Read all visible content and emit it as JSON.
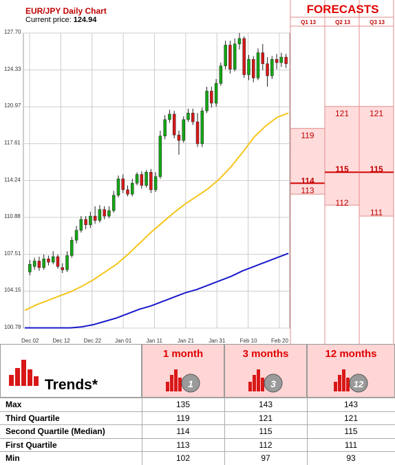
{
  "header": {
    "title": "EUR/JPY Daily Chart",
    "price_label": "Current price:",
    "price_value": "124.94"
  },
  "forecast_panel": {
    "title": "FORECASTS",
    "quarters": [
      "Q1 13",
      "Q2 13",
      "Q3 13"
    ],
    "q1": {
      "high": "119",
      "mid": "114",
      "low": "113"
    },
    "q2": {
      "high": "121",
      "mid": "115",
      "low": "112"
    },
    "q3": {
      "high": "121",
      "mid": "115",
      "low": "111"
    }
  },
  "chart_data": {
    "type": "candlestick",
    "title": "EUR/JPY Daily Chart",
    "yticks": [
      "127.70",
      "124.33",
      "120.97",
      "117.61",
      "114.24",
      "110.88",
      "107.51",
      "104.15",
      "100.78"
    ],
    "xticks": [
      "Dec 02",
      "Dec 12",
      "Dec 22",
      "Jan 01",
      "Jan 11",
      "Jan 21",
      "Jan 31",
      "Feb 10",
      "Feb 20"
    ],
    "ylim": [
      100.78,
      127.7
    ],
    "candles": [
      {
        "o": 105.9,
        "c": 106.6,
        "h": 107.0,
        "l": 105.6
      },
      {
        "o": 106.4,
        "c": 106.9,
        "h": 107.2,
        "l": 106.1
      },
      {
        "o": 106.9,
        "c": 106.3,
        "h": 107.3,
        "l": 106.0
      },
      {
        "o": 106.3,
        "c": 107.1,
        "h": 107.5,
        "l": 106.1
      },
      {
        "o": 107.1,
        "c": 106.8,
        "h": 107.4,
        "l": 106.5
      },
      {
        "o": 106.8,
        "c": 107.3,
        "h": 107.8,
        "l": 106.6
      },
      {
        "o": 107.3,
        "c": 106.4,
        "h": 107.5,
        "l": 106.2
      },
      {
        "o": 106.3,
        "c": 106.1,
        "h": 106.7,
        "l": 105.8
      },
      {
        "o": 106.1,
        "c": 107.4,
        "h": 107.8,
        "l": 105.9
      },
      {
        "o": 107.4,
        "c": 108.8,
        "h": 109.1,
        "l": 107.2
      },
      {
        "o": 108.8,
        "c": 109.7,
        "h": 110.1,
        "l": 108.5
      },
      {
        "o": 109.7,
        "c": 110.7,
        "h": 111.0,
        "l": 109.5
      },
      {
        "o": 110.7,
        "c": 110.2,
        "h": 111.0,
        "l": 109.8
      },
      {
        "o": 110.2,
        "c": 111.0,
        "h": 111.4,
        "l": 109.9
      },
      {
        "o": 111.0,
        "c": 110.6,
        "h": 111.9,
        "l": 110.3
      },
      {
        "o": 110.6,
        "c": 111.6,
        "h": 112.0,
        "l": 110.4
      },
      {
        "o": 111.6,
        "c": 111.0,
        "h": 111.9,
        "l": 110.7
      },
      {
        "o": 111.0,
        "c": 111.5,
        "h": 111.9,
        "l": 110.8
      },
      {
        "o": 111.5,
        "c": 112.9,
        "h": 113.3,
        "l": 111.3
      },
      {
        "o": 112.9,
        "c": 114.4,
        "h": 114.7,
        "l": 112.7
      },
      {
        "o": 114.4,
        "c": 113.4,
        "h": 114.8,
        "l": 113.1
      },
      {
        "o": 113.4,
        "c": 113.0,
        "h": 113.8,
        "l": 112.8
      },
      {
        "o": 113.0,
        "c": 114.0,
        "h": 114.4,
        "l": 112.8
      },
      {
        "o": 114.0,
        "c": 114.8,
        "h": 115.0,
        "l": 113.8
      },
      {
        "o": 114.8,
        "c": 113.8,
        "h": 115.1,
        "l": 113.5
      },
      {
        "o": 113.8,
        "c": 115.0,
        "h": 115.2,
        "l": 113.6
      },
      {
        "o": 115.0,
        "c": 113.4,
        "h": 115.3,
        "l": 113.1
      },
      {
        "o": 113.4,
        "c": 114.6,
        "h": 115.0,
        "l": 113.2
      },
      {
        "o": 114.6,
        "c": 118.3,
        "h": 118.8,
        "l": 114.4
      },
      {
        "o": 118.3,
        "c": 119.8,
        "h": 120.2,
        "l": 118.0
      },
      {
        "o": 119.8,
        "c": 120.3,
        "h": 120.7,
        "l": 119.5
      },
      {
        "o": 120.3,
        "c": 118.4,
        "h": 120.6,
        "l": 118.1
      },
      {
        "o": 118.4,
        "c": 117.9,
        "h": 118.8,
        "l": 116.6
      },
      {
        "o": 117.9,
        "c": 119.8,
        "h": 120.1,
        "l": 117.7
      },
      {
        "o": 119.8,
        "c": 120.4,
        "h": 120.8,
        "l": 119.6
      },
      {
        "o": 120.4,
        "c": 119.6,
        "h": 120.8,
        "l": 119.3
      },
      {
        "o": 119.6,
        "c": 117.6,
        "h": 120.4,
        "l": 117.3
      },
      {
        "o": 117.6,
        "c": 120.6,
        "h": 120.9,
        "l": 117.3
      },
      {
        "o": 120.6,
        "c": 122.4,
        "h": 122.8,
        "l": 120.4
      },
      {
        "o": 122.4,
        "c": 121.3,
        "h": 122.8,
        "l": 120.9
      },
      {
        "o": 121.3,
        "c": 123.1,
        "h": 123.5,
        "l": 121.0
      },
      {
        "o": 123.1,
        "c": 124.7,
        "h": 125.0,
        "l": 122.9
      },
      {
        "o": 124.7,
        "c": 126.6,
        "h": 127.0,
        "l": 124.4
      },
      {
        "o": 126.6,
        "c": 124.4,
        "h": 127.0,
        "l": 124.0
      },
      {
        "o": 124.4,
        "c": 126.7,
        "h": 127.2,
        "l": 124.2
      },
      {
        "o": 126.7,
        "c": 127.2,
        "h": 127.7,
        "l": 126.2
      },
      {
        "o": 127.2,
        "c": 123.9,
        "h": 127.4,
        "l": 123.6
      },
      {
        "o": 123.9,
        "c": 125.3,
        "h": 125.7,
        "l": 123.4
      },
      {
        "o": 125.3,
        "c": 123.6,
        "h": 125.6,
        "l": 123.2
      },
      {
        "o": 123.6,
        "c": 125.9,
        "h": 126.3,
        "l": 123.4
      },
      {
        "o": 125.9,
        "c": 124.9,
        "h": 126.7,
        "l": 124.3
      },
      {
        "o": 124.9,
        "c": 123.8,
        "h": 125.5,
        "l": 122.8
      },
      {
        "o": 123.8,
        "c": 125.3,
        "h": 125.6,
        "l": 123.5
      },
      {
        "o": 125.3,
        "c": 125.0,
        "h": 125.8,
        "l": 124.4
      },
      {
        "o": 125.0,
        "c": 125.5,
        "h": 125.9,
        "l": 124.6
      },
      {
        "o": 125.5,
        "c": 124.9,
        "h": 125.8,
        "l": 124.5
      }
    ],
    "ma_yellow": [
      102.4,
      102.9,
      103.3,
      103.7,
      104.1,
      104.6,
      105.2,
      105.9,
      106.6,
      107.5,
      108.5,
      109.5,
      110.4,
      111.3,
      112.1,
      112.8,
      113.5,
      114.4,
      115.5,
      116.8,
      118.2,
      119.2,
      120.0,
      120.4
    ],
    "ma_blue": [
      100.8,
      100.8,
      100.8,
      100.8,
      100.8,
      100.9,
      101.1,
      101.4,
      101.7,
      102.1,
      102.5,
      102.8,
      103.2,
      103.6,
      104.0,
      104.3,
      104.7,
      105.1,
      105.5,
      106.0,
      106.4,
      106.8,
      107.2,
      107.6
    ],
    "colors": {
      "up": "#14a614",
      "down": "#d81818",
      "ma_yellow": "#f5c518",
      "ma_blue": "#1818cc",
      "grid": "#cccccc"
    }
  },
  "trends": {
    "label": "Trends*",
    "columns": [
      "1 month",
      "3 months",
      "12 months"
    ],
    "badges": [
      "1",
      "3",
      "12"
    ],
    "rows": [
      {
        "label": "Max",
        "values": [
          "135",
          "143",
          "143"
        ]
      },
      {
        "label": "Third Quartile",
        "values": [
          "119",
          "121",
          "121"
        ]
      },
      {
        "label": "Second Quartile (Median)",
        "values": [
          "114",
          "115",
          "115"
        ]
      },
      {
        "label": "First Quartile",
        "values": [
          "113",
          "112",
          "111"
        ]
      },
      {
        "label": "Min",
        "values": [
          "102",
          "97",
          "93"
        ]
      }
    ]
  }
}
